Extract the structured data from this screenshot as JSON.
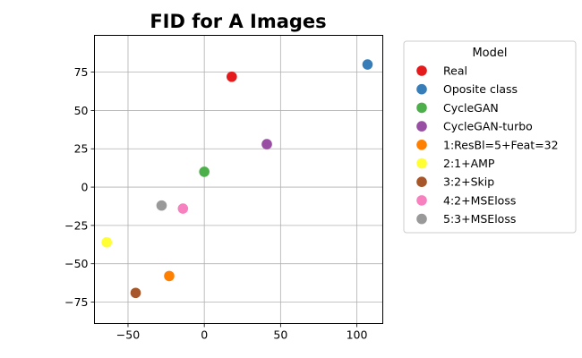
{
  "chart_data": {
    "type": "scatter",
    "title": "FID for A Images",
    "xlabel": "",
    "ylabel": "",
    "xlim": [
      -72,
      117
    ],
    "ylim": [
      -89,
      99
    ],
    "xticks": [
      -50,
      0,
      50,
      100
    ],
    "yticks": [
      -75,
      -50,
      -25,
      0,
      25,
      50,
      75
    ],
    "grid": true,
    "legend": {
      "title": "Model",
      "placement": "outside-right-top"
    },
    "series": [
      {
        "name": "Real",
        "color": "#e41a1c",
        "points": [
          {
            "x": 18,
            "y": 72
          }
        ]
      },
      {
        "name": "Oposite class",
        "color": "#377eb8",
        "points": [
          {
            "x": 107,
            "y": 80
          }
        ]
      },
      {
        "name": "CycleGAN",
        "color": "#4daf4a",
        "points": [
          {
            "x": 0,
            "y": 10
          }
        ]
      },
      {
        "name": "CycleGAN-turbo",
        "color": "#984ea3",
        "points": [
          {
            "x": 41,
            "y": 28
          }
        ]
      },
      {
        "name": "1:ResBl=5+Feat=32",
        "color": "#ff7f00",
        "points": [
          {
            "x": -23,
            "y": -58
          }
        ]
      },
      {
        "name": "2:1+AMP",
        "color": "#ffff33",
        "points": [
          {
            "x": -64,
            "y": -36
          }
        ]
      },
      {
        "name": "3:2+Skip",
        "color": "#a65628",
        "points": [
          {
            "x": -45,
            "y": -69
          }
        ]
      },
      {
        "name": "4:2+MSEloss",
        "color": "#f781bf",
        "points": [
          {
            "x": -14,
            "y": -14
          }
        ]
      },
      {
        "name": "5:3+MSEloss",
        "color": "#999999",
        "points": [
          {
            "x": -28,
            "y": -12
          }
        ]
      }
    ]
  }
}
